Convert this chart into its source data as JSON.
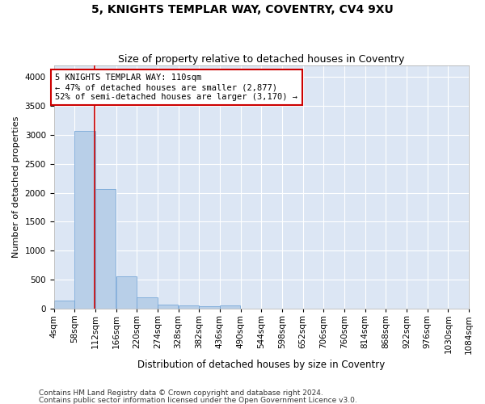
{
  "title1": "5, KNIGHTS TEMPLAR WAY, COVENTRY, CV4 9XU",
  "title2": "Size of property relative to detached houses in Coventry",
  "xlabel": "Distribution of detached houses by size in Coventry",
  "ylabel": "Number of detached properties",
  "bar_color": "#b8cfe8",
  "bar_edge_color": "#6a9fd4",
  "background_color": "#dce6f4",
  "grid_color": "#ffffff",
  "annotation_box_color": "#cc0000",
  "vline_color": "#cc0000",
  "vline_x": 110,
  "annotation_text": "5 KNIGHTS TEMPLAR WAY: 110sqm\n← 47% of detached houses are smaller (2,877)\n52% of semi-detached houses are larger (3,170) →",
  "footer1": "Contains HM Land Registry data © Crown copyright and database right 2024.",
  "footer2": "Contains public sector information licensed under the Open Government Licence v3.0.",
  "bin_edges": [
    4,
    58,
    112,
    166,
    220,
    274,
    328,
    382,
    436,
    490,
    544,
    598,
    652,
    706,
    760,
    814,
    868,
    922,
    976,
    1030,
    1084
  ],
  "bin_counts": [
    140,
    3060,
    2060,
    560,
    200,
    75,
    55,
    35,
    50,
    0,
    0,
    0,
    0,
    0,
    0,
    0,
    0,
    0,
    0,
    0
  ],
  "ylim": [
    0,
    4200
  ],
  "yticks": [
    0,
    500,
    1000,
    1500,
    2000,
    2500,
    3000,
    3500,
    4000
  ],
  "title1_fontsize": 10,
  "title2_fontsize": 9,
  "xlabel_fontsize": 8.5,
  "ylabel_fontsize": 8,
  "tick_fontsize": 7.5,
  "annotation_fontsize": 7.5,
  "footer_fontsize": 6.5
}
